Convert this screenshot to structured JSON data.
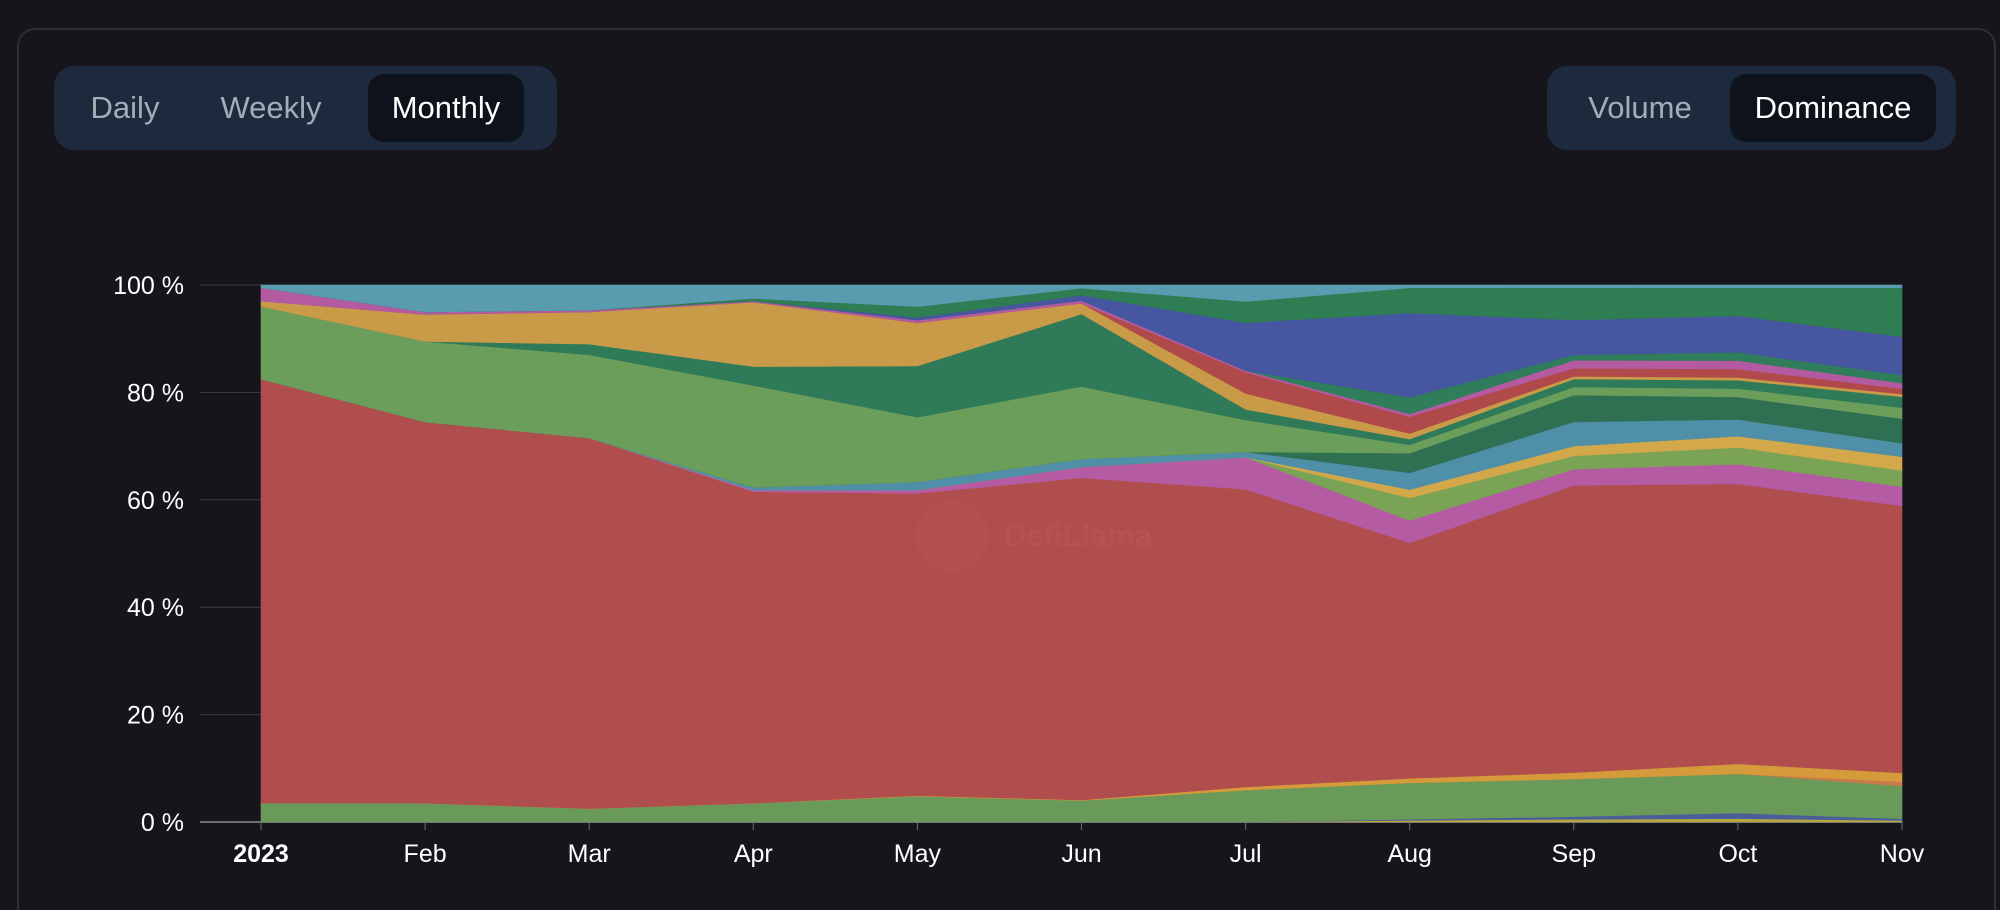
{
  "controls": {
    "period_tabs": [
      {
        "label": "Daily",
        "active": false
      },
      {
        "label": "Weekly",
        "active": false
      },
      {
        "label": "Monthly",
        "active": true
      }
    ],
    "mode_tabs": [
      {
        "label": "Volume",
        "active": false
      },
      {
        "label": "Dominance",
        "active": true
      }
    ]
  },
  "watermark": "DefiLlama",
  "chart_data": {
    "type": "area",
    "stacked": true,
    "normalized_percent": true,
    "x": [
      "2023",
      "Feb",
      "Mar",
      "Apr",
      "May",
      "Jun",
      "Jul",
      "Aug",
      "Sep",
      "Oct",
      "Nov"
    ],
    "x_tick_bold": [
      "2023"
    ],
    "yticks": [
      "0 %",
      "20 %",
      "40 %",
      "60 %",
      "80 %",
      "100 %"
    ],
    "ylim": [
      0,
      100
    ],
    "grid": "horizontal",
    "legend": "none",
    "series": [
      {
        "color": "#b5a642",
        "values": [
          0,
          0,
          0,
          0,
          0,
          0,
          0,
          0.3,
          0.5,
          0.6,
          0.3
        ]
      },
      {
        "color": "#4a5f9a",
        "values": [
          0,
          0,
          0,
          0,
          0,
          0,
          0,
          0.2,
          0.5,
          1.0,
          0.3
        ]
      },
      {
        "color": "#6a9a5a",
        "values": [
          3.5,
          3.5,
          2.5,
          3.5,
          4.8,
          4.0,
          6.0,
          6.5,
          7.0,
          7.0,
          6.0
        ]
      },
      {
        "color": "#c97a4a",
        "values": [
          0,
          0,
          0,
          0,
          0,
          0,
          0,
          0,
          0,
          0,
          0.8
        ]
      },
      {
        "color": "#d59a3a",
        "values": [
          0,
          0,
          0,
          0,
          0.1,
          0.1,
          0.6,
          0.8,
          1.2,
          1.8,
          1.6
        ]
      },
      {
        "color": "#b04e4e",
        "values": [
          79,
          71,
          69,
          58,
          56,
          60,
          56,
          42,
          53.5,
          50.0,
          49.0
        ]
      },
      {
        "color": "#b55ba4",
        "values": [
          0,
          0,
          0,
          0.3,
          0.6,
          2.0,
          6.0,
          4.0,
          3.0,
          3.5,
          3.5
        ]
      },
      {
        "color": "#7aa356",
        "values": [
          0,
          0,
          0,
          0,
          0,
          0,
          0,
          4.0,
          2.5,
          3.0,
          3.0
        ]
      },
      {
        "color": "#d3a84a",
        "values": [
          0,
          0,
          0,
          0,
          0,
          0,
          0,
          1.5,
          1.8,
          2.0,
          2.5
        ]
      },
      {
        "color": "#4f8fa8",
        "values": [
          0,
          0,
          0,
          0.5,
          1.5,
          1.5,
          1.0,
          3.0,
          4.5,
          3.0,
          2.5
        ]
      },
      {
        "color": "#2f6f52",
        "values": [
          0,
          0,
          0,
          0,
          0,
          0,
          0,
          3.5,
          5.0,
          4.0,
          4.5
        ]
      },
      {
        "color": "#6b9e5b",
        "values": [
          13.5,
          15.0,
          15.5,
          19.0,
          12.0,
          13.5,
          6.0,
          1.5,
          1.5,
          1.5,
          2.0
        ]
      },
      {
        "color": "#2f7a58",
        "values": [
          0,
          0,
          2.0,
          3.5,
          9.5,
          13.5,
          2.0,
          1.0,
          1.5,
          1.5,
          2.0
        ]
      },
      {
        "color": "#c99a48",
        "values": [
          1.0,
          5.0,
          6.0,
          12.0,
          8.0,
          2.0,
          3.0,
          1.0,
          0.5,
          0.5,
          0.5
        ]
      },
      {
        "color": "#b04a4a",
        "values": [
          0,
          0,
          0,
          0,
          0,
          0,
          4.0,
          3.0,
          1.5,
          1.5,
          1.0
        ]
      },
      {
        "color": "#b35aa0",
        "values": [
          2.5,
          0.5,
          0.3,
          0.2,
          0.5,
          0.5,
          0.3,
          0.5,
          1.5,
          1.5,
          1.0
        ]
      },
      {
        "color": "#2f7d5a",
        "values": [
          0,
          0,
          0,
          0,
          0,
          0,
          0,
          3.0,
          1.0,
          1.5,
          1.5
        ]
      },
      {
        "color": "#4656a0",
        "values": [
          0,
          0,
          0,
          0,
          0.5,
          1.0,
          9.0,
          15.0,
          6.5,
          6.5,
          7.0
        ]
      },
      {
        "color": "#2f7d52",
        "values": [
          0,
          0,
          0,
          0.5,
          2.0,
          1.3,
          4.0,
          4.5,
          6.0,
          5.0,
          9.0
        ]
      },
      {
        "color": "#5a9bb0",
        "values": [
          0.5,
          5.0,
          4.7,
          2.5,
          4.0,
          0.6,
          3.1,
          0.5,
          0.5,
          0.5,
          0.5
        ]
      }
    ]
  }
}
